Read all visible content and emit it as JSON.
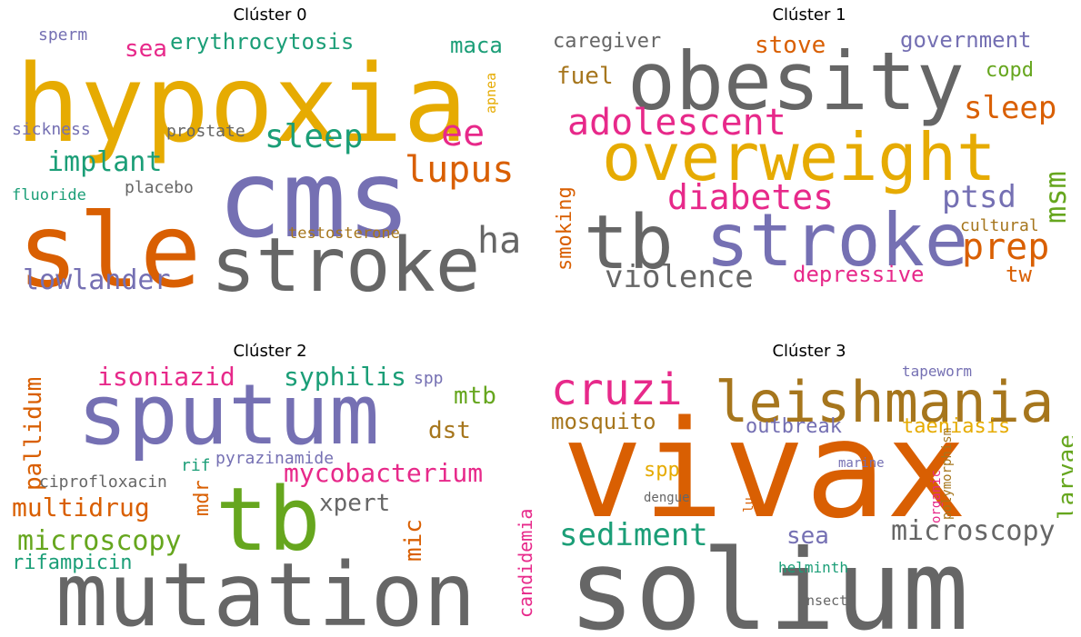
{
  "colors": {
    "grey": "#666666",
    "orange": "#d95f02",
    "purple": "#7570b3",
    "pink": "#e7298a",
    "teal": "#1b9e77",
    "gold": "#e6ab02",
    "green": "#66a61e",
    "brown": "#a6761d"
  },
  "chart_data": [
    {
      "type": "wordcloud",
      "title": "Clúster 0",
      "words": [
        {
          "text": "hypoxia",
          "color": "gold"
        },
        {
          "text": "sle",
          "color": "orange"
        },
        {
          "text": "cms",
          "color": "purple"
        },
        {
          "text": "stroke",
          "color": "grey"
        },
        {
          "text": "lupus",
          "color": "orange"
        },
        {
          "text": "ee",
          "color": "pink"
        },
        {
          "text": "ha",
          "color": "grey"
        },
        {
          "text": "sleep",
          "color": "teal"
        },
        {
          "text": "erythrocytosis",
          "color": "teal"
        },
        {
          "text": "sea",
          "color": "pink"
        },
        {
          "text": "maca",
          "color": "teal"
        },
        {
          "text": "implant",
          "color": "teal"
        },
        {
          "text": "lowlander",
          "color": "purple"
        },
        {
          "text": "sperm",
          "color": "purple"
        },
        {
          "text": "sickness",
          "color": "purple"
        },
        {
          "text": "prostate",
          "color": "grey"
        },
        {
          "text": "placebo",
          "color": "grey"
        },
        {
          "text": "fluoride",
          "color": "teal"
        },
        {
          "text": "testosterone",
          "color": "brown"
        },
        {
          "text": "apnea",
          "color": "gold"
        }
      ]
    },
    {
      "type": "wordcloud",
      "title": "Clúster 1",
      "words": [
        {
          "text": "obesity",
          "color": "grey"
        },
        {
          "text": "overweight",
          "color": "gold"
        },
        {
          "text": "tb",
          "color": "grey"
        },
        {
          "text": "stroke",
          "color": "purple"
        },
        {
          "text": "adolescent",
          "color": "pink"
        },
        {
          "text": "diabetes",
          "color": "pink"
        },
        {
          "text": "violence",
          "color": "grey"
        },
        {
          "text": "prep",
          "color": "orange"
        },
        {
          "text": "ptsd",
          "color": "purple"
        },
        {
          "text": "msm",
          "color": "green"
        },
        {
          "text": "sleep",
          "color": "orange"
        },
        {
          "text": "government",
          "color": "purple"
        },
        {
          "text": "stove",
          "color": "orange"
        },
        {
          "text": "caregiver",
          "color": "grey"
        },
        {
          "text": "fuel",
          "color": "brown"
        },
        {
          "text": "copd",
          "color": "green"
        },
        {
          "text": "depressive",
          "color": "pink"
        },
        {
          "text": "tw",
          "color": "orange"
        },
        {
          "text": "cultural",
          "color": "brown"
        },
        {
          "text": "smoking",
          "color": "orange"
        }
      ]
    },
    {
      "type": "wordcloud",
      "title": "Clúster 2",
      "words": [
        {
          "text": "sputum",
          "color": "purple"
        },
        {
          "text": "tb",
          "color": "green"
        },
        {
          "text": "mutation",
          "color": "grey"
        },
        {
          "text": "isoniazid",
          "color": "pink"
        },
        {
          "text": "syphilis",
          "color": "teal"
        },
        {
          "text": "spp",
          "color": "purple"
        },
        {
          "text": "mtb",
          "color": "green"
        },
        {
          "text": "dst",
          "color": "brown"
        },
        {
          "text": "mycobacterium",
          "color": "pink"
        },
        {
          "text": "xpert",
          "color": "grey"
        },
        {
          "text": "multidrug",
          "color": "orange"
        },
        {
          "text": "microscopy",
          "color": "green"
        },
        {
          "text": "rifampicin",
          "color": "teal"
        },
        {
          "text": "pallidum",
          "color": "orange"
        },
        {
          "text": "ciprofloxacin",
          "color": "grey"
        },
        {
          "text": "rif",
          "color": "teal"
        },
        {
          "text": "pyrazinamide",
          "color": "purple"
        },
        {
          "text": "mdr",
          "color": "orange"
        },
        {
          "text": "mic",
          "color": "orange"
        },
        {
          "text": "candidemia",
          "color": "pink"
        }
      ]
    },
    {
      "type": "wordcloud",
      "title": "Clúster 3",
      "words": [
        {
          "text": "vivax",
          "color": "orange"
        },
        {
          "text": "solium",
          "color": "grey"
        },
        {
          "text": "leishmania",
          "color": "brown"
        },
        {
          "text": "cruzi",
          "color": "pink"
        },
        {
          "text": "mosquito",
          "color": "brown"
        },
        {
          "text": "sediment",
          "color": "teal"
        },
        {
          "text": "microscopy",
          "color": "grey"
        },
        {
          "text": "outbreak",
          "color": "purple"
        },
        {
          "text": "taeniasis",
          "color": "gold"
        },
        {
          "text": "larvae",
          "color": "green"
        },
        {
          "text": "sea",
          "color": "purple"
        },
        {
          "text": "spp",
          "color": "gold"
        },
        {
          "text": "tapeworm",
          "color": "purple"
        },
        {
          "text": "marine",
          "color": "purple"
        },
        {
          "text": "dengue",
          "color": "grey"
        },
        {
          "text": "lu",
          "color": "orange"
        },
        {
          "text": "organic",
          "color": "pink"
        },
        {
          "text": "polymorphism",
          "color": "brown"
        },
        {
          "text": "helminth",
          "color": "teal"
        },
        {
          "text": "insect",
          "color": "grey"
        }
      ]
    }
  ]
}
